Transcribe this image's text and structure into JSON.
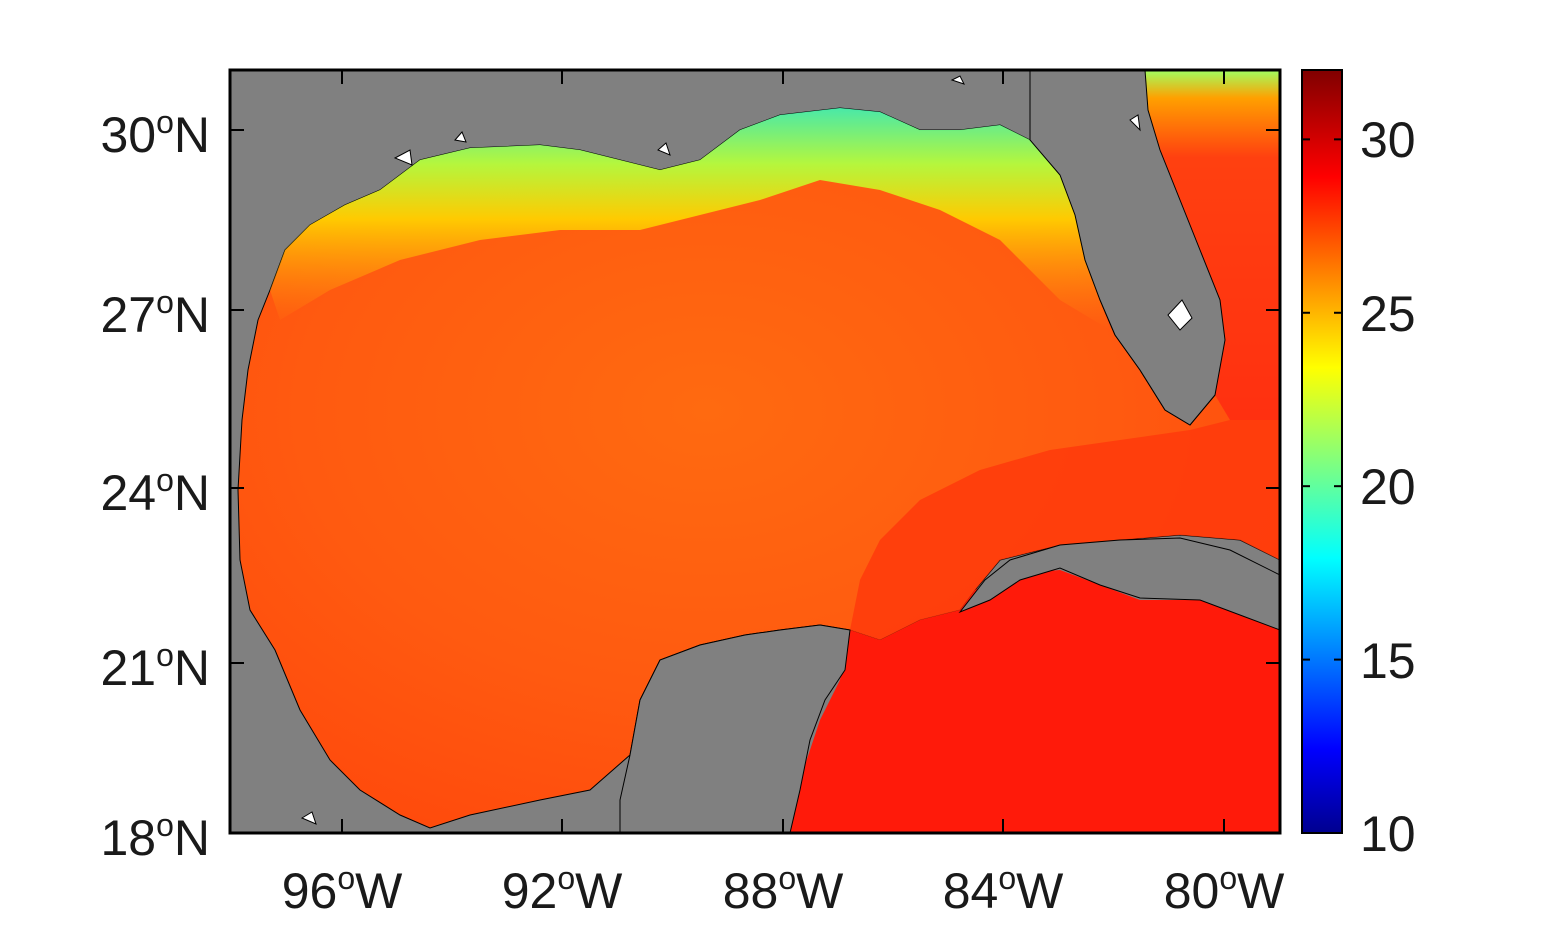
{
  "map": {
    "land_color": "#808080",
    "coast_color": "#000000",
    "colorscale": "jet",
    "colorbar": {
      "min": 10,
      "max": 32,
      "ticks": [
        "30",
        "25",
        "20",
        "15",
        "10"
      ]
    },
    "lat_labels": [
      {
        "deg": "30",
        "hemi": "N"
      },
      {
        "deg": "27",
        "hemi": "N"
      },
      {
        "deg": "24",
        "hemi": "N"
      },
      {
        "deg": "21",
        "hemi": "N"
      },
      {
        "deg": "18",
        "hemi": "N"
      }
    ],
    "lon_labels": [
      {
        "deg": "96",
        "hemi": "W"
      },
      {
        "deg": "92",
        "hemi": "W"
      },
      {
        "deg": "88",
        "hemi": "W"
      },
      {
        "deg": "84",
        "hemi": "W"
      },
      {
        "deg": "80",
        "hemi": "W"
      }
    ],
    "degree_symbol": "o"
  }
}
